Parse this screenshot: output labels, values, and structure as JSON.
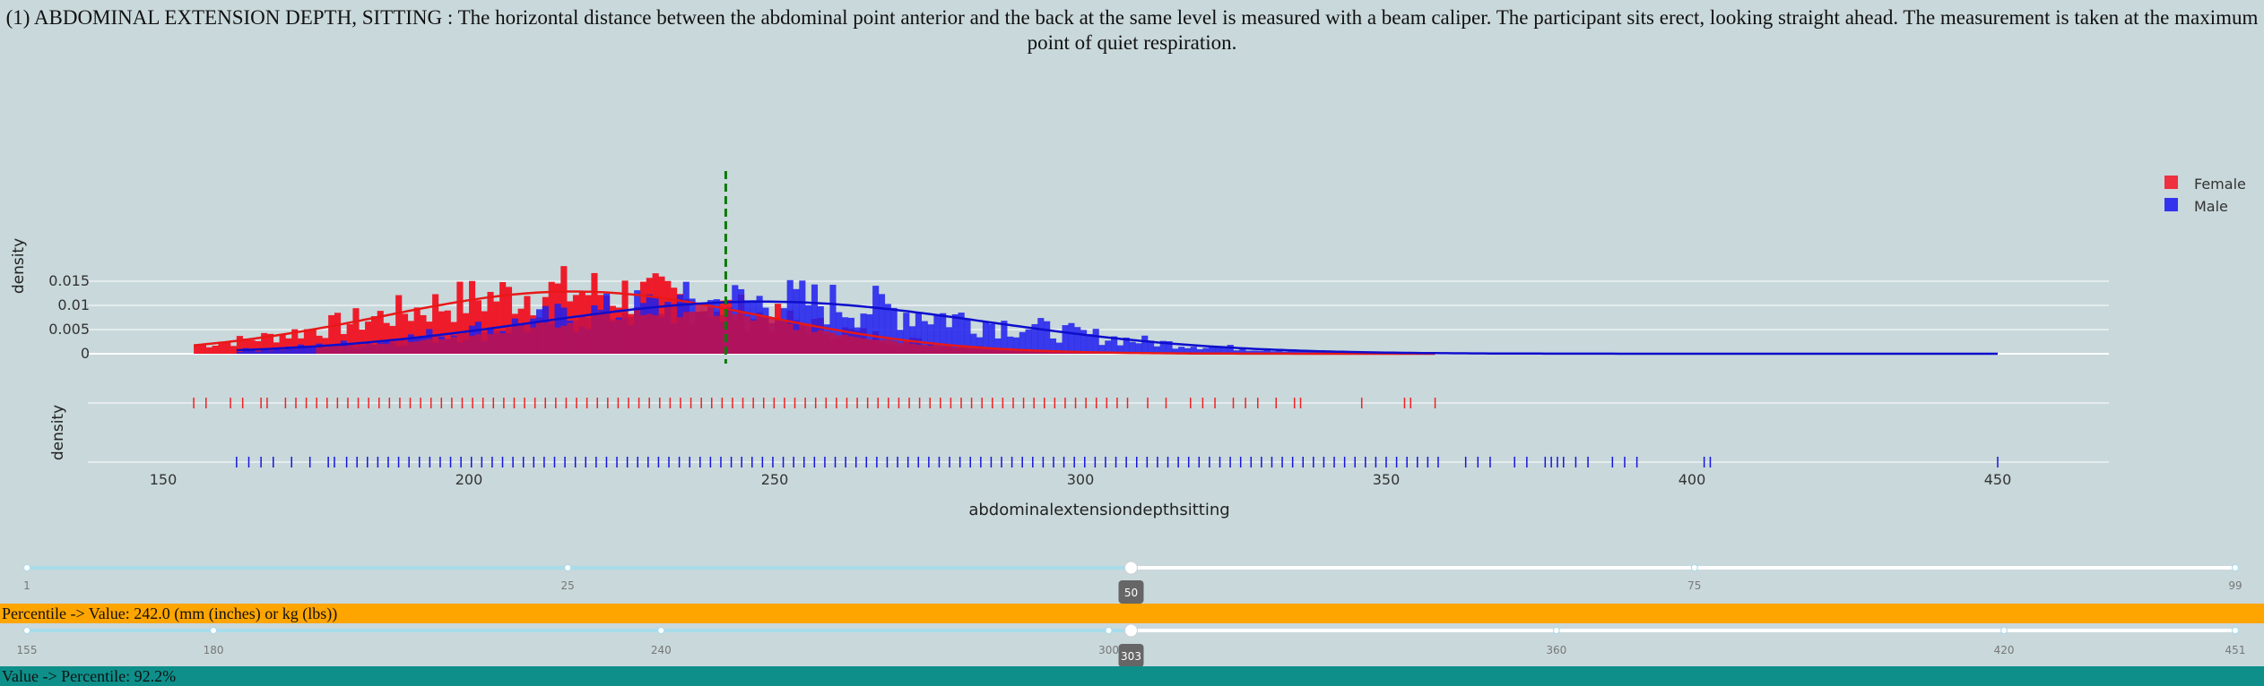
{
  "title": "(1) ABDOMINAL EXTENSION DEPTH, SITTING : The horizontal distance between the abdominal point anterior and the back at the same level is measured with a beam caliper. The participant sits erect, looking straight ahead. The measurement is taken at the maximum point of quiet respiration.",
  "colors": {
    "background": "#c9d8db",
    "female": "#ee1c2a",
    "male": "#1f1fee",
    "overlap": "#c4124a",
    "marker": "#0a7a0a",
    "percentile_band": "#ffa500",
    "value_band": "#0e8f8a",
    "slider_track_active": "#a8dceb",
    "slider_track_inactive": "#ffffff",
    "slider_handle_label": "#666666"
  },
  "chart_data": {
    "type": "histogram",
    "xlabel": "abdominalextensiondepthsitting",
    "ylabel_top": "density",
    "ylabel_rug": "density",
    "x_ticks": [
      "150",
      "200",
      "250",
      "300",
      "350",
      "400",
      "450"
    ],
    "xlim": [
      138,
      468
    ],
    "y_ticks": [
      "0",
      "0.005",
      "0.01",
      "0.015"
    ],
    "ylim": [
      0,
      0.0185
    ],
    "grid": true,
    "legend_position": "top-right",
    "marker_value": 242,
    "series": [
      {
        "name": "Female",
        "kde_mean": 217,
        "kde_sd": 31,
        "range": [
          155,
          358
        ]
      },
      {
        "name": "Male",
        "kde_mean": 248,
        "kde_sd": 37,
        "range": [
          162,
          450
        ]
      }
    ],
    "female_rug_extra": [
      155,
      157,
      161,
      163,
      166,
      167,
      311,
      314,
      318,
      320,
      322,
      325,
      327,
      329,
      332,
      335,
      336,
      346,
      353,
      354,
      358
    ],
    "male_rug_extra": [
      162,
      164,
      166,
      168,
      171,
      174,
      177,
      178,
      363,
      365,
      367,
      371,
      373,
      376,
      377,
      378,
      379,
      381,
      383,
      387,
      389,
      391,
      402,
      403,
      450
    ]
  },
  "sliders": {
    "percentile": {
      "value": "50",
      "ticks": [
        "1",
        "25",
        "50",
        "75",
        "99"
      ],
      "tick_values": [
        1,
        25,
        50,
        75,
        99
      ],
      "min": 1,
      "max": 99
    },
    "value": {
      "value": "303",
      "ticks": [
        "155",
        "180",
        "240",
        "300",
        "360",
        "420",
        "451"
      ],
      "tick_values": [
        155,
        180,
        240,
        300,
        360,
        420,
        451
      ],
      "min": 155,
      "max": 451
    }
  },
  "percentile_text": "Percentile -> Value: 242.0 (mm (inches) or kg (lbs))",
  "value_text": "Value -> Percentile: 92.2%"
}
